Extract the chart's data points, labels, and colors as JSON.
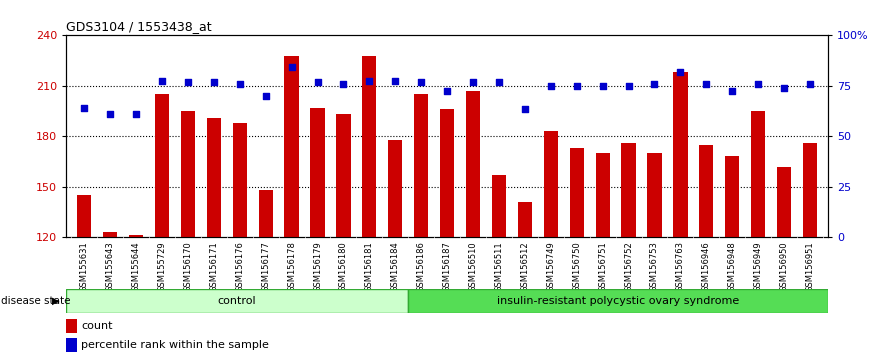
{
  "title": "GDS3104 / 1553438_at",
  "samples": [
    "GSM155631",
    "GSM155643",
    "GSM155644",
    "GSM155729",
    "GSM156170",
    "GSM156171",
    "GSM156176",
    "GSM156177",
    "GSM156178",
    "GSM156179",
    "GSM156180",
    "GSM156181",
    "GSM156184",
    "GSM156186",
    "GSM156187",
    "GSM156510",
    "GSM156511",
    "GSM156512",
    "GSM156749",
    "GSM156750",
    "GSM156751",
    "GSM156752",
    "GSM156753",
    "GSM156763",
    "GSM156946",
    "GSM156948",
    "GSM156949",
    "GSM156950",
    "GSM156951"
  ],
  "bar_values": [
    145,
    123,
    121,
    205,
    195,
    191,
    188,
    148,
    228,
    197,
    193,
    228,
    178,
    205,
    196,
    207,
    157,
    141,
    183,
    173,
    170,
    176,
    170,
    218,
    175,
    168,
    195,
    162,
    176
  ],
  "dot_values": [
    197,
    193,
    193,
    213,
    212,
    212,
    211,
    204,
    221,
    212,
    211,
    213,
    213,
    212,
    207,
    212,
    212,
    196,
    210,
    210,
    210,
    210,
    211,
    218,
    211,
    207,
    211,
    209,
    211
  ],
  "group_labels": [
    "control",
    "insulin-resistant polycystic ovary syndrome"
  ],
  "group_sizes": [
    13,
    16
  ],
  "bar_color": "#cc0000",
  "dot_color": "#0000cc",
  "ymin": 120,
  "ymax": 240,
  "yticks": [
    120,
    150,
    180,
    210,
    240
  ],
  "right_yticks": [
    0,
    25,
    50,
    75,
    100
  ],
  "right_ytick_labels": [
    "0",
    "25",
    "50",
    "75",
    "100%"
  ],
  "disease_state_label": "disease state",
  "legend_bar_label": "count",
  "legend_dot_label": "percentile rank within the sample",
  "label_color_left": "#cc0000",
  "label_color_right": "#0000cc",
  "grid_color_dotted": "#555555"
}
